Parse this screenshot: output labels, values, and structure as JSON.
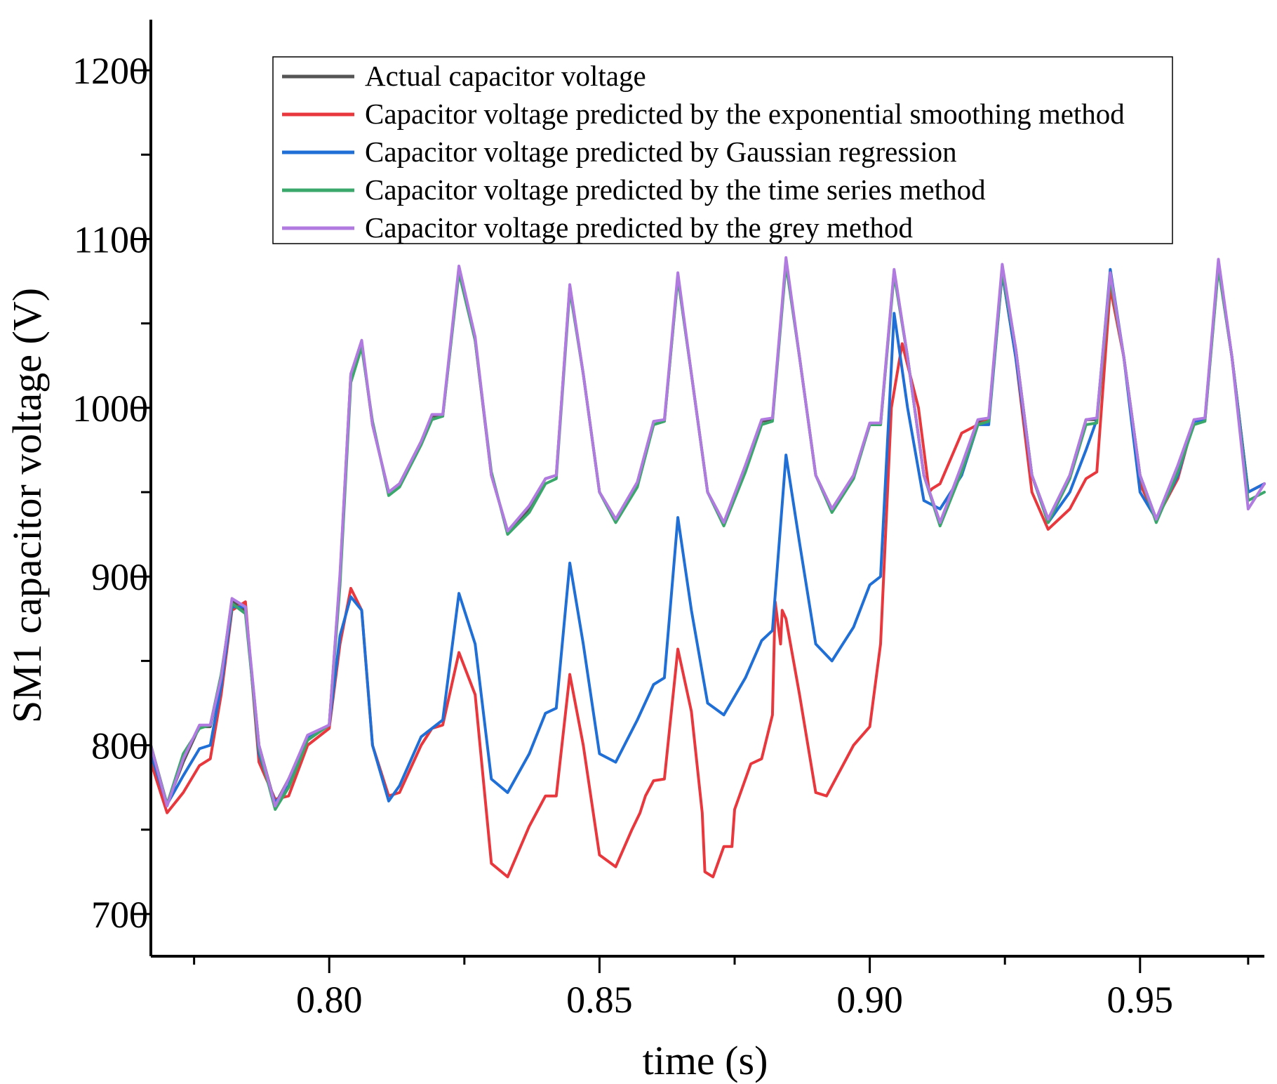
{
  "chart_data": {
    "type": "line",
    "title": "",
    "xlabel": "time (s)",
    "ylabel": "SM1 capacitor voltage (V)",
    "xlim": [
      0.767,
      0.973
    ],
    "ylim": [
      675,
      1230
    ],
    "xticks": [
      0.8,
      0.85,
      0.9,
      0.95
    ],
    "xtick_labels": [
      "0.80",
      "0.85",
      "0.90",
      "0.95"
    ],
    "yticks": [
      700,
      800,
      900,
      1000,
      1100,
      1200
    ],
    "ytick_labels": [
      "700",
      "800",
      "900",
      "1000",
      "1100",
      "1200"
    ],
    "legend_position": "top-right",
    "colors": {
      "actual": "#555555",
      "exponential": "#e8383d",
      "gaussian": "#1f6fd6",
      "time_series": "#3aa86b",
      "grey": "#b07ae0"
    },
    "series": [
      {
        "name": "Actual capacitor voltage",
        "color_key": "actual",
        "x": [
          0.767,
          0.77,
          0.773,
          0.776,
          0.778,
          0.78,
          0.782,
          0.7845,
          0.787,
          0.79,
          0.7925,
          0.796,
          0.8,
          0.802,
          0.804,
          0.806,
          0.808,
          0.811,
          0.813,
          0.817,
          0.819,
          0.821,
          0.824,
          0.827,
          0.83,
          0.833,
          0.837,
          0.84,
          0.842,
          0.8445,
          0.847,
          0.85,
          0.853,
          0.857,
          0.86,
          0.862,
          0.8645,
          0.867,
          0.87,
          0.873,
          0.877,
          0.88,
          0.882,
          0.8845,
          0.887,
          0.89,
          0.893,
          0.897,
          0.9,
          0.902,
          0.9045,
          0.907,
          0.91,
          0.913,
          0.917,
          0.92,
          0.922,
          0.9245,
          0.927,
          0.93,
          0.933,
          0.937,
          0.94,
          0.942,
          0.9445,
          0.947,
          0.95,
          0.953,
          0.957,
          0.96,
          0.962,
          0.9645,
          0.967,
          0.97,
          0.973
        ],
        "y": [
          800,
          765,
          790,
          811,
          811,
          840,
          886,
          880,
          800,
          765,
          780,
          805,
          812,
          900,
          1020,
          1038,
          990,
          950,
          955,
          980,
          995,
          995,
          1082,
          1040,
          960,
          927,
          940,
          958,
          960,
          1072,
          1020,
          950,
          934,
          955,
          990,
          992,
          1078,
          1020,
          950,
          932,
          965,
          992,
          993,
          1087,
          1030,
          960,
          940,
          960,
          990,
          990,
          1081,
          1030,
          960,
          932,
          965,
          992,
          993,
          1083,
          1035,
          960,
          934,
          960,
          993,
          993,
          1079,
          1030,
          960,
          934,
          965,
          992,
          993,
          1086,
          1030,
          950,
          955
        ]
      },
      {
        "name": "Capacitor voltage predicted by the exponential smoothing method",
        "color_key": "exponential",
        "x": [
          0.767,
          0.77,
          0.773,
          0.776,
          0.778,
          0.78,
          0.782,
          0.7845,
          0.787,
          0.79,
          0.7925,
          0.796,
          0.8,
          0.802,
          0.804,
          0.806,
          0.808,
          0.811,
          0.813,
          0.817,
          0.819,
          0.821,
          0.824,
          0.827,
          0.83,
          0.833,
          0.837,
          0.84,
          0.842,
          0.8445,
          0.847,
          0.85,
          0.853,
          0.856,
          0.8575,
          0.8585,
          0.86,
          0.862,
          0.8645,
          0.867,
          0.869,
          0.8695,
          0.871,
          0.873,
          0.8745,
          0.875,
          0.878,
          0.88,
          0.882,
          0.8825,
          0.8835,
          0.8838,
          0.8845,
          0.887,
          0.89,
          0.892,
          0.897,
          0.9,
          0.902,
          0.904,
          0.906,
          0.909,
          0.911,
          0.9115,
          0.913,
          0.917,
          0.92,
          0.922,
          0.9245,
          0.927,
          0.93,
          0.933,
          0.937,
          0.94,
          0.942,
          0.9445,
          0.947,
          0.95,
          0.953,
          0.957,
          0.96,
          0.962,
          0.9645,
          0.967,
          0.97,
          0.973
        ],
        "y": [
          790,
          760,
          772,
          788,
          792,
          830,
          880,
          885,
          790,
          768,
          770,
          800,
          810,
          860,
          893,
          880,
          800,
          770,
          772,
          800,
          810,
          812,
          855,
          830,
          730,
          722,
          752,
          770,
          770,
          842,
          800,
          735,
          728,
          750,
          760,
          770,
          779,
          780,
          857,
          820,
          760,
          725,
          722,
          740,
          740,
          762,
          789,
          792,
          818,
          885,
          860,
          880,
          875,
          830,
          772,
          770,
          800,
          811,
          860,
          1000,
          1038,
          1000,
          950,
          952,
          955,
          985,
          990,
          993,
          1080,
          1030,
          950,
          928,
          940,
          958,
          962,
          1071,
          1030,
          955,
          934,
          958,
          993,
          993,
          1084,
          1030,
          950,
          955
        ]
      },
      {
        "name": "Capacitor voltage predicted by Gaussian regression",
        "color_key": "gaussian",
        "x": [
          0.767,
          0.77,
          0.773,
          0.776,
          0.778,
          0.78,
          0.782,
          0.7845,
          0.787,
          0.79,
          0.7925,
          0.796,
          0.8,
          0.802,
          0.804,
          0.806,
          0.808,
          0.811,
          0.813,
          0.817,
          0.819,
          0.821,
          0.824,
          0.827,
          0.83,
          0.833,
          0.837,
          0.84,
          0.842,
          0.8445,
          0.847,
          0.85,
          0.853,
          0.857,
          0.86,
          0.862,
          0.8645,
          0.867,
          0.87,
          0.873,
          0.877,
          0.88,
          0.882,
          0.8845,
          0.887,
          0.89,
          0.893,
          0.897,
          0.9,
          0.902,
          0.9045,
          0.907,
          0.91,
          0.913,
          0.917,
          0.92,
          0.922,
          0.9245,
          0.927,
          0.93,
          0.933,
          0.937,
          0.94,
          0.942,
          0.9445,
          0.947,
          0.95,
          0.953,
          0.957,
          0.96,
          0.962,
          0.9645,
          0.967,
          0.97,
          0.973
        ],
        "y": [
          795,
          765,
          782,
          798,
          800,
          835,
          882,
          882,
          795,
          766,
          776,
          805,
          812,
          865,
          888,
          880,
          800,
          767,
          776,
          805,
          810,
          815,
          890,
          860,
          780,
          772,
          795,
          819,
          822,
          908,
          860,
          795,
          790,
          815,
          836,
          840,
          935,
          880,
          825,
          818,
          840,
          862,
          868,
          972,
          920,
          860,
          850,
          870,
          895,
          900,
          1056,
          1000,
          945,
          940,
          960,
          990,
          990,
          1080,
          1030,
          960,
          932,
          950,
          975,
          993,
          1082,
          1030,
          950,
          934,
          960,
          992,
          993,
          1085,
          1030,
          950,
          955
        ]
      },
      {
        "name": "Capacitor voltage predicted by the time series method",
        "color_key": "time_series",
        "x": [
          0.767,
          0.77,
          0.773,
          0.776,
          0.778,
          0.78,
          0.782,
          0.7845,
          0.787,
          0.79,
          0.7925,
          0.796,
          0.8,
          0.802,
          0.804,
          0.806,
          0.808,
          0.811,
          0.813,
          0.817,
          0.819,
          0.821,
          0.824,
          0.827,
          0.83,
          0.833,
          0.837,
          0.84,
          0.842,
          0.8445,
          0.847,
          0.85,
          0.853,
          0.857,
          0.86,
          0.862,
          0.8645,
          0.867,
          0.87,
          0.873,
          0.877,
          0.88,
          0.882,
          0.8845,
          0.887,
          0.89,
          0.893,
          0.897,
          0.9,
          0.902,
          0.9045,
          0.907,
          0.91,
          0.913,
          0.917,
          0.92,
          0.922,
          0.9245,
          0.927,
          0.93,
          0.933,
          0.937,
          0.94,
          0.942,
          0.9445,
          0.947,
          0.95,
          0.953,
          0.957,
          0.96,
          0.962,
          0.9645,
          0.967,
          0.97,
          0.973
        ],
        "y": [
          800,
          765,
          795,
          810,
          812,
          842,
          884,
          878,
          798,
          762,
          775,
          803,
          812,
          895,
          1015,
          1036,
          992,
          948,
          953,
          978,
          993,
          995,
          1080,
          1040,
          962,
          925,
          938,
          955,
          958,
          1070,
          1020,
          950,
          932,
          953,
          990,
          992,
          1077,
          1020,
          950,
          930,
          962,
          990,
          992,
          1085,
          1030,
          960,
          938,
          958,
          990,
          990,
          1079,
          1030,
          960,
          930,
          962,
          990,
          992,
          1081,
          1035,
          960,
          932,
          958,
          990,
          991,
          1077,
          1030,
          960,
          932,
          962,
          990,
          992,
          1083,
          1030,
          945,
          950
        ]
      },
      {
        "name": "Capacitor voltage predicted by the grey method",
        "color_key": "grey",
        "x": [
          0.767,
          0.77,
          0.773,
          0.776,
          0.778,
          0.78,
          0.782,
          0.7845,
          0.787,
          0.79,
          0.7925,
          0.796,
          0.8,
          0.802,
          0.804,
          0.806,
          0.808,
          0.811,
          0.813,
          0.817,
          0.819,
          0.821,
          0.824,
          0.827,
          0.83,
          0.833,
          0.837,
          0.84,
          0.842,
          0.8445,
          0.847,
          0.85,
          0.853,
          0.857,
          0.86,
          0.862,
          0.8645,
          0.867,
          0.87,
          0.873,
          0.877,
          0.88,
          0.882,
          0.8845,
          0.887,
          0.89,
          0.893,
          0.897,
          0.9,
          0.902,
          0.9045,
          0.907,
          0.91,
          0.913,
          0.917,
          0.92,
          0.922,
          0.9245,
          0.927,
          0.93,
          0.933,
          0.937,
          0.94,
          0.942,
          0.9445,
          0.947,
          0.95,
          0.953,
          0.957,
          0.96,
          0.962,
          0.9645,
          0.967,
          0.97,
          0.973
        ],
        "y": [
          800,
          764,
          792,
          812,
          812,
          840,
          887,
          882,
          800,
          764,
          780,
          806,
          812,
          902,
          1020,
          1040,
          990,
          950,
          955,
          980,
          996,
          996,
          1084,
          1042,
          960,
          927,
          942,
          958,
          960,
          1073,
          1020,
          950,
          934,
          956,
          992,
          993,
          1080,
          1020,
          950,
          932,
          966,
          993,
          994,
          1089,
          1030,
          960,
          940,
          960,
          991,
          991,
          1082,
          1030,
          960,
          932,
          966,
          993,
          994,
          1085,
          1035,
          960,
          934,
          960,
          993,
          994,
          1080,
          1030,
          960,
          934,
          966,
          993,
          994,
          1088,
          1030,
          940,
          955
        ]
      }
    ]
  }
}
